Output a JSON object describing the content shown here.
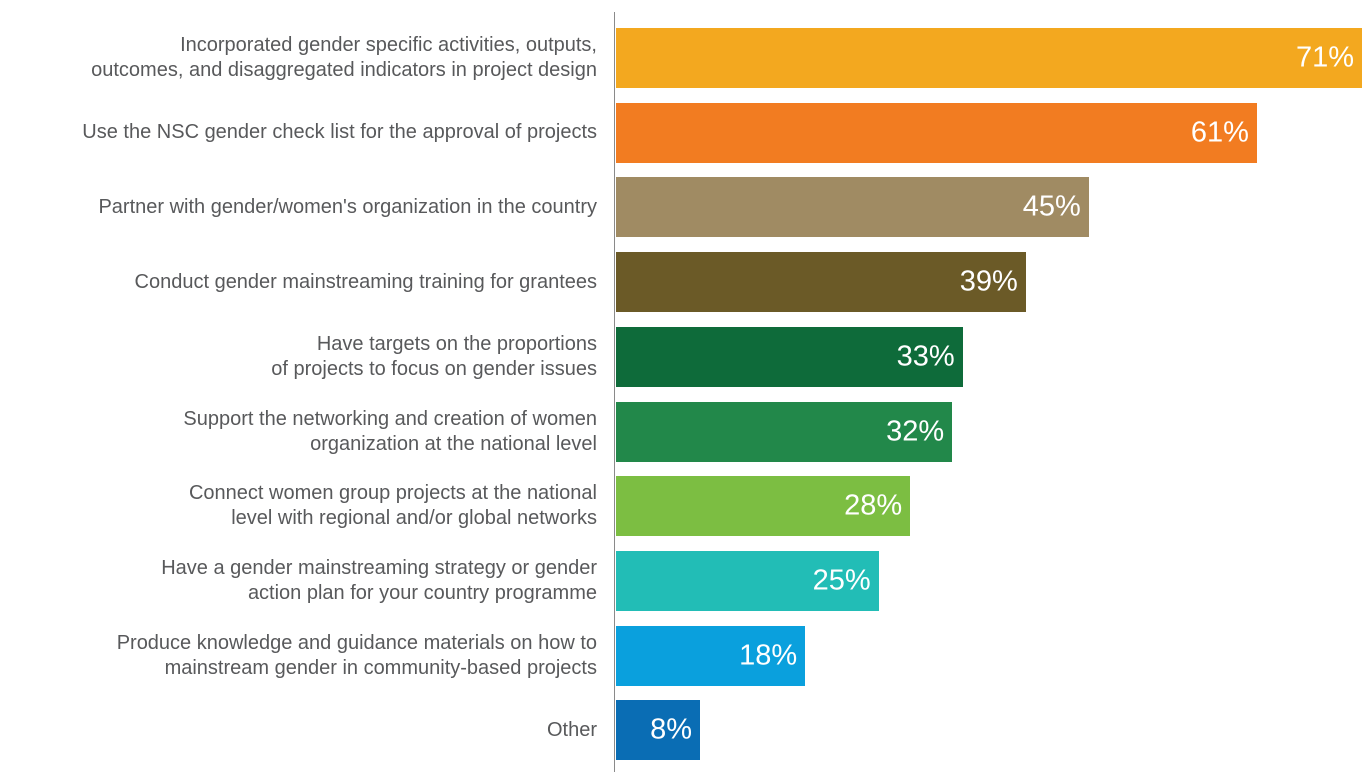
{
  "chart_data": {
    "type": "bar",
    "orientation": "horizontal",
    "categories": [
      [
        "Incorporated gender specific activities, outputs,",
        "outcomes, and disaggregated indicators in project design"
      ],
      [
        "Use the NSC gender check list for the approval of projects"
      ],
      [
        "Partner with gender/women's organization in the country"
      ],
      [
        "Conduct gender mainstreaming training for grantees"
      ],
      [
        "Have targets on the proportions",
        "of projects to focus on gender issues"
      ],
      [
        "Support the networking and creation of women",
        "organization at the national level"
      ],
      [
        "Connect women group projects at the national",
        "level with regional and/or global networks"
      ],
      [
        "Have a gender mainstreaming strategy or gender",
        "action plan for your country programme"
      ],
      [
        "Produce knowledge and guidance materials on how to",
        "mainstream gender in community-based projects"
      ],
      [
        "Other"
      ]
    ],
    "values": [
      71,
      61,
      45,
      39,
      33,
      32,
      28,
      25,
      18,
      8
    ],
    "value_labels": [
      "71%",
      "61%",
      "45%",
      "39%",
      "33%",
      "32%",
      "28%",
      "25%",
      "18%",
      "8%"
    ],
    "colors": [
      "#f3a81f",
      "#f27c21",
      "#a08b63",
      "#6b5a27",
      "#0e6b3a",
      "#22884a",
      "#7cbe42",
      "#22bdb6",
      "#0aa0dd",
      "#0a6db4"
    ],
    "xlim": [
      0,
      71
    ],
    "grid": false,
    "legend": "none"
  }
}
